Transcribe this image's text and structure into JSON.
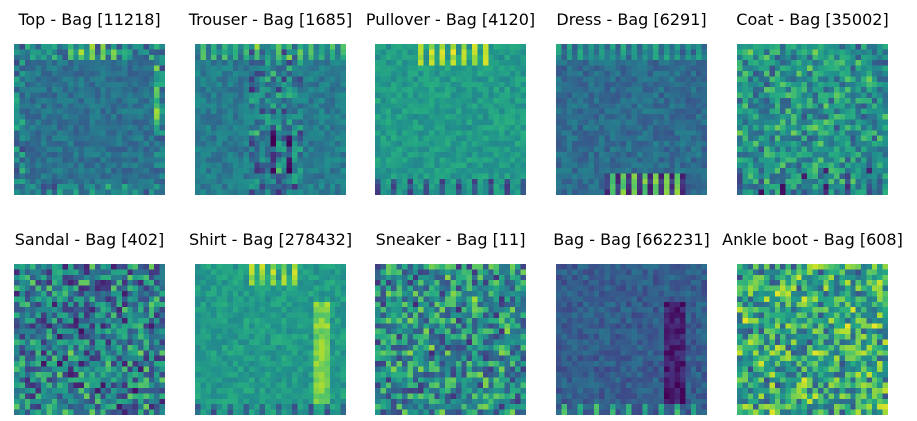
{
  "chart_data": [
    {
      "type": "heatmap",
      "title": "Top - Bag [11218]",
      "grid": false,
      "colormap": "viridis",
      "rows": 28,
      "cols": 28,
      "dominant_value": 0.38,
      "pattern": "frame"
    },
    {
      "type": "heatmap",
      "title": "Trouser - Bag [1685]",
      "grid": false,
      "colormap": "viridis",
      "rows": 28,
      "cols": 28,
      "dominant_value": 0.42,
      "pattern": "center-columns"
    },
    {
      "type": "heatmap",
      "title": "Pullover - Bag [4120]",
      "grid": false,
      "colormap": "viridis",
      "rows": 28,
      "cols": 28,
      "dominant_value": 0.55,
      "pattern": "top-stripes"
    },
    {
      "type": "heatmap",
      "title": "Dress - Bag [6291]",
      "grid": false,
      "colormap": "viridis",
      "rows": 28,
      "cols": 28,
      "dominant_value": 0.36,
      "pattern": "bottom-stripes"
    },
    {
      "type": "heatmap",
      "title": "Coat - Bag [35002]",
      "grid": false,
      "colormap": "viridis",
      "rows": 28,
      "cols": 28,
      "dominant_value": 0.52,
      "pattern": "mixed"
    },
    {
      "type": "heatmap",
      "title": "Sandal - Bag [402]",
      "grid": false,
      "colormap": "viridis",
      "rows": 28,
      "cols": 28,
      "dominant_value": 0.42,
      "pattern": "noise"
    },
    {
      "type": "heatmap",
      "title": "Shirt - Bag [278432]",
      "grid": false,
      "colormap": "viridis",
      "rows": 28,
      "cols": 28,
      "dominant_value": 0.55,
      "pattern": "right-column-bright"
    },
    {
      "type": "heatmap",
      "title": "Sneaker - Bag [11]",
      "grid": false,
      "colormap": "viridis",
      "rows": 28,
      "cols": 28,
      "dominant_value": 0.48,
      "pattern": "noise"
    },
    {
      "type": "heatmap",
      "title": "Bag - Bag [662231]",
      "grid": false,
      "colormap": "viridis",
      "rows": 28,
      "cols": 28,
      "dominant_value": 0.3,
      "pattern": "right-column-dark"
    },
    {
      "type": "heatmap",
      "title": "Ankle boot - Bag [608]",
      "grid": false,
      "colormap": "viridis",
      "rows": 28,
      "cols": 28,
      "dominant_value": 0.6,
      "pattern": "noise"
    }
  ]
}
